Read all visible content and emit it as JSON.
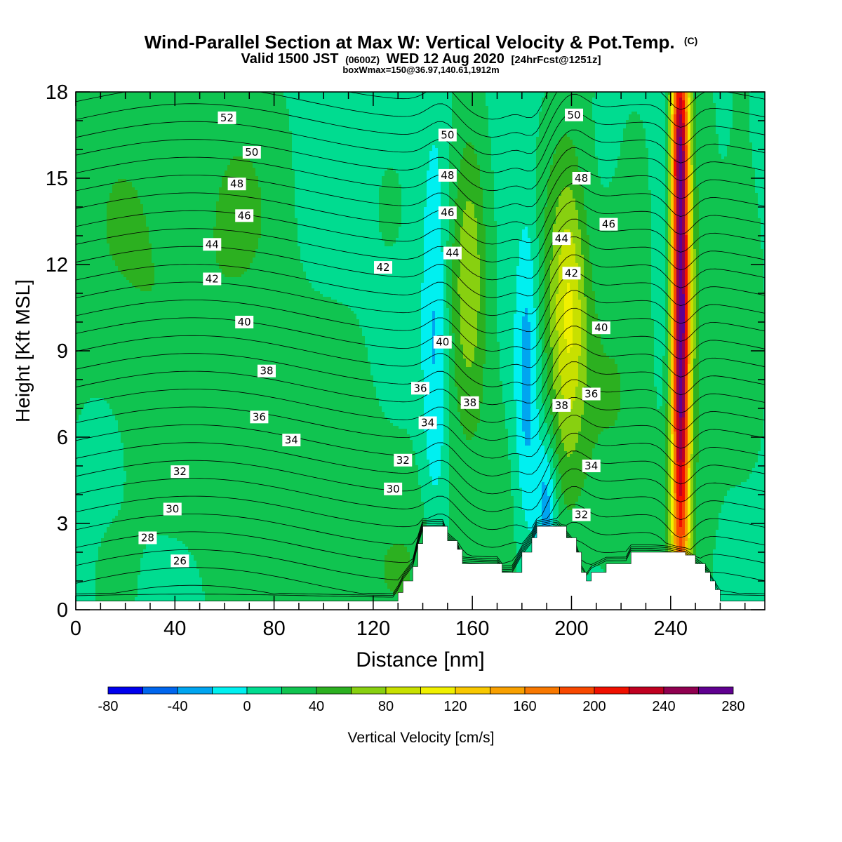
{
  "chart_data": {
    "type": "heatmap",
    "title": "Wind-Parallel Section at Max W: Vertical Velocity & Pot.Temp.",
    "title_mark": "(C)",
    "subtitle_parts": [
      "Valid 1500 JST",
      "(0600Z)",
      "WED 12 Aug 2020",
      "[24hrFcst@1251z]"
    ],
    "subtitle2": "boxWmax=150@36.97,140.61,1912m",
    "xlabel": "Distance [nm]",
    "ylabel": "Height [Kft MSL]",
    "xlim": [
      0,
      278
    ],
    "ylim": [
      0,
      18
    ],
    "x_ticks": [
      "0",
      "40",
      "80",
      "120",
      "160",
      "200",
      "240"
    ],
    "x_tick_values": [
      0,
      40,
      80,
      120,
      160,
      200,
      240
    ],
    "y_ticks": [
      "0",
      "3",
      "6",
      "9",
      "12",
      "15",
      "18"
    ],
    "y_tick_values": [
      0,
      3,
      6,
      9,
      12,
      15,
      18
    ],
    "colorbar": {
      "label": "Vertical Velocity [cm/s]",
      "tick_labels": [
        "-80",
        "-40",
        "0",
        "40",
        "80",
        "120",
        "160",
        "200",
        "240",
        "280"
      ],
      "tick_values": [
        -80,
        -40,
        0,
        40,
        80,
        120,
        160,
        200,
        240,
        280
      ],
      "bins": [
        -80,
        -60,
        -40,
        -20,
        0,
        20,
        40,
        60,
        80,
        100,
        120,
        140,
        160,
        180,
        200,
        220,
        240,
        260,
        280
      ],
      "colors": [
        "#0000ee",
        "#0066ee",
        "#00a5f0",
        "#00f0f0",
        "#00dc90",
        "#10c450",
        "#2cb020",
        "#88d010",
        "#c8e000",
        "#f0f000",
        "#f8c800",
        "#f8a000",
        "#f87800",
        "#f84800",
        "#f01000",
        "#c00020",
        "#900050",
        "#600090"
      ]
    },
    "terrain": [
      [
        0,
        0.3
      ],
      [
        128,
        0.3
      ],
      [
        130,
        0.6
      ],
      [
        132,
        1.0
      ],
      [
        136,
        1.5
      ],
      [
        138,
        2.3
      ],
      [
        140,
        2.9
      ],
      [
        148,
        2.9
      ],
      [
        150,
        2.4
      ],
      [
        154,
        2.1
      ],
      [
        156,
        1.6
      ],
      [
        164,
        1.6
      ],
      [
        170,
        1.6
      ],
      [
        172,
        1.3
      ],
      [
        176,
        1.3
      ],
      [
        180,
        2.0
      ],
      [
        184,
        2.5
      ],
      [
        186,
        2.9
      ],
      [
        194,
        2.9
      ],
      [
        198,
        2.5
      ],
      [
        202,
        2.0
      ],
      [
        204,
        1.3
      ],
      [
        206,
        1.0
      ],
      [
        208,
        1.3
      ],
      [
        214,
        1.6
      ],
      [
        222,
        1.6
      ],
      [
        224,
        2.0
      ],
      [
        240,
        2.0
      ],
      [
        246,
        1.9
      ],
      [
        250,
        1.6
      ],
      [
        254,
        1.3
      ],
      [
        256,
        1.0
      ],
      [
        258,
        0.7
      ],
      [
        260,
        0.3
      ],
      [
        278,
        0.3
      ]
    ],
    "w_features": [
      {
        "x": 28,
        "z": 12.5,
        "sx": 24,
        "sz": 4.5,
        "w": 26
      },
      {
        "x": 68,
        "z": 14.0,
        "sx": 14,
        "sz": 3.5,
        "w": 18
      },
      {
        "x": 95,
        "z": 3.5,
        "sx": 38,
        "sz": 4.5,
        "w": 20
      },
      {
        "x": 140,
        "z": 1.5,
        "sx": 15,
        "sz": 2.0,
        "w": 14
      },
      {
        "x": 155,
        "z": 12.0,
        "sx": 6,
        "sz": 3.5,
        "w": 30
      },
      {
        "x": 160,
        "z": 12.0,
        "sx": 4.5,
        "sz": 3.5,
        "w": 40
      },
      {
        "x": 145,
        "z": 9.0,
        "sx": 4,
        "sz": 5.0,
        "w": -45
      },
      {
        "x": 173,
        "z": 4.0,
        "sx": 9,
        "sz": 3.0,
        "w": 12
      },
      {
        "x": 182,
        "z": 8.0,
        "sx": 3.5,
        "sz": 4.5,
        "w": -45
      },
      {
        "x": 190,
        "z": 3.5,
        "sx": 3,
        "sz": 1.8,
        "w": -55
      },
      {
        "x": 197,
        "z": 10.0,
        "sx": 6.5,
        "sz": 4.5,
        "w": 60
      },
      {
        "x": 200,
        "z": 10.5,
        "sx": 4,
        "sz": 3.0,
        "w": 28
      },
      {
        "x": 220,
        "z": 8.0,
        "sx": 13,
        "sz": 6.0,
        "w": 22
      },
      {
        "x": 238,
        "z": 13.0,
        "sx": 4,
        "sz": 4.0,
        "w": -30
      },
      {
        "x": 244,
        "z": 10.0,
        "sx": 2.6,
        "sz": 8.0,
        "w": 250
      },
      {
        "x": 243,
        "z": 16.5,
        "sx": 2.5,
        "sz": 2.0,
        "w": 60
      },
      {
        "x": 248,
        "z": 9.0,
        "sx": 8,
        "sz": 6.5,
        "w": 25
      },
      {
        "x": 269,
        "z": 12.0,
        "sx": 6,
        "sz": 4.0,
        "w": 20
      }
    ],
    "w_background": 14,
    "theta_contour_levels": [
      24,
      25,
      26,
      27,
      28,
      29,
      30,
      31,
      32,
      33,
      34,
      35,
      36,
      37,
      38,
      39,
      40,
      41,
      42,
      43,
      44,
      45,
      46,
      47,
      48,
      49,
      50,
      51,
      52,
      53,
      54
    ],
    "contour_labels": [
      {
        "text": "52",
        "x": 61,
        "z": 17.1
      },
      {
        "text": "50",
        "x": 71,
        "z": 15.9
      },
      {
        "text": "48",
        "x": 65,
        "z": 14.8
      },
      {
        "text": "46",
        "x": 68,
        "z": 13.7
      },
      {
        "text": "44",
        "x": 55,
        "z": 12.7
      },
      {
        "text": "42",
        "x": 55,
        "z": 11.5
      },
      {
        "text": "42",
        "x": 124,
        "z": 11.9
      },
      {
        "text": "40",
        "x": 68,
        "z": 10.0
      },
      {
        "text": "38",
        "x": 77,
        "z": 8.3
      },
      {
        "text": "36",
        "x": 74,
        "z": 6.7
      },
      {
        "text": "34",
        "x": 87,
        "z": 5.9
      },
      {
        "text": "32",
        "x": 42,
        "z": 4.8
      },
      {
        "text": "30",
        "x": 39,
        "z": 3.5
      },
      {
        "text": "28",
        "x": 29,
        "z": 2.5
      },
      {
        "text": "26",
        "x": 42,
        "z": 1.7
      },
      {
        "text": "50",
        "x": 150,
        "z": 16.5
      },
      {
        "text": "48",
        "x": 150,
        "z": 15.1
      },
      {
        "text": "46",
        "x": 150,
        "z": 13.8
      },
      {
        "text": "44",
        "x": 152,
        "z": 12.4
      },
      {
        "text": "40",
        "x": 148,
        "z": 9.3
      },
      {
        "text": "36",
        "x": 139,
        "z": 7.7
      },
      {
        "text": "38",
        "x": 159,
        "z": 7.2
      },
      {
        "text": "34",
        "x": 142,
        "z": 6.5
      },
      {
        "text": "32",
        "x": 132,
        "z": 5.2
      },
      {
        "text": "30",
        "x": 128,
        "z": 4.2
      },
      {
        "text": "50",
        "x": 201,
        "z": 17.2
      },
      {
        "text": "48",
        "x": 204,
        "z": 15.0
      },
      {
        "text": "46",
        "x": 215,
        "z": 13.4
      },
      {
        "text": "44",
        "x": 196,
        "z": 12.9
      },
      {
        "text": "42",
        "x": 200,
        "z": 11.7
      },
      {
        "text": "40",
        "x": 212,
        "z": 9.8
      },
      {
        "text": "38",
        "x": 196,
        "z": 7.1
      },
      {
        "text": "36",
        "x": 208,
        "z": 7.5
      },
      {
        "text": "34",
        "x": 208,
        "z": 5.0
      },
      {
        "text": "32",
        "x": 204,
        "z": 3.3
      }
    ]
  }
}
